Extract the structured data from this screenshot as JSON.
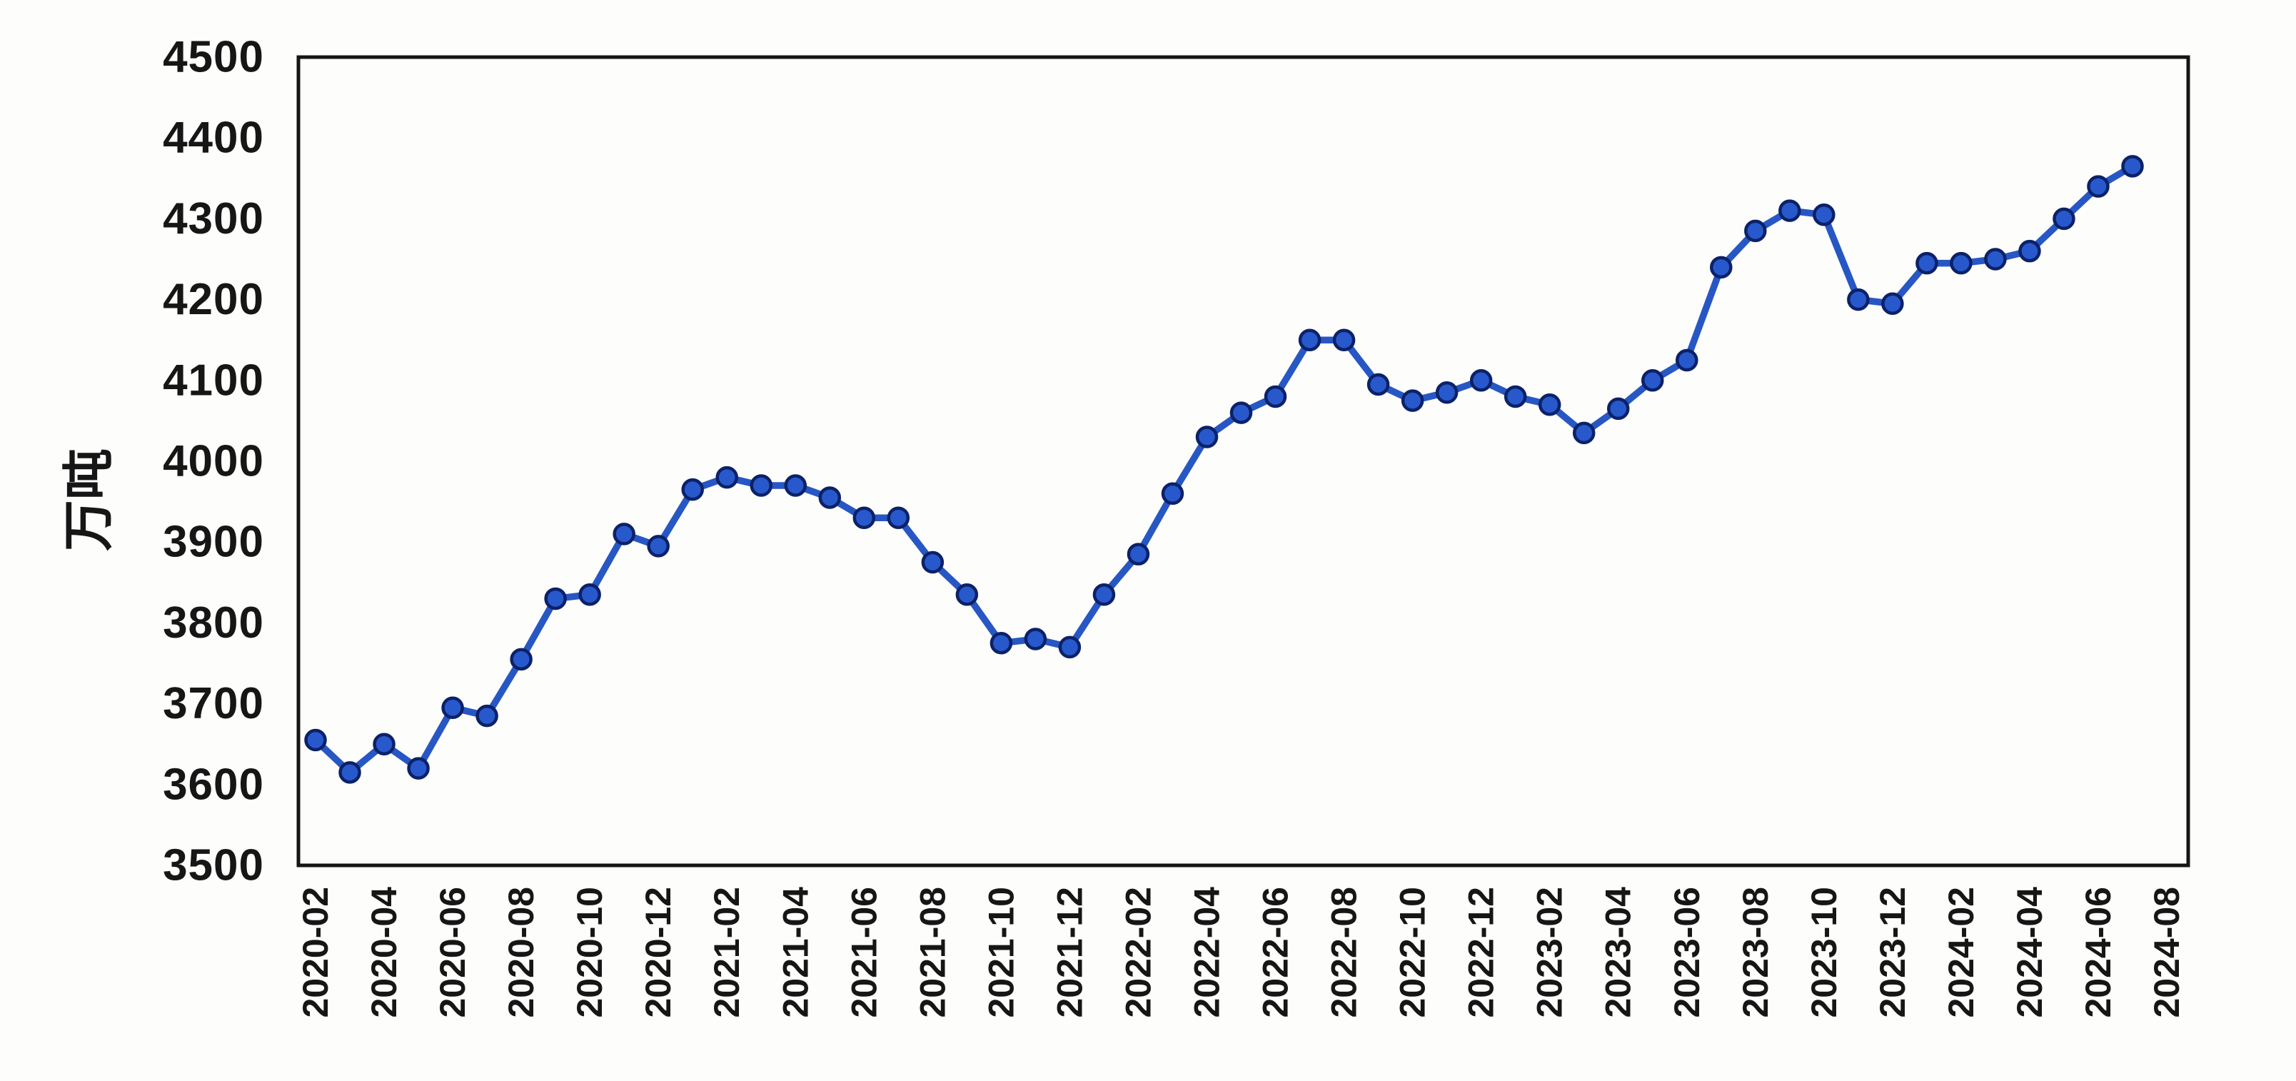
{
  "page": {
    "background": "#fdfdfb"
  },
  "chart_data": {
    "type": "line",
    "title": "",
    "ylabel": "万吨",
    "xlabel": "",
    "grid": false,
    "legend": "none",
    "ylim": [
      3500,
      4500
    ],
    "yticks": [
      3500,
      3600,
      3700,
      3800,
      3900,
      4000,
      4100,
      4200,
      4300,
      4400,
      4500
    ],
    "xtick_labels": [
      "2020-02",
      "2020-04",
      "2020-06",
      "2020-08",
      "2020-10",
      "2020-12",
      "2021-02",
      "2021-04",
      "2021-06",
      "2021-08",
      "2021-10",
      "2021-12",
      "2022-02",
      "2022-04",
      "2022-06",
      "2022-08",
      "2022-10",
      "2022-12",
      "2023-02",
      "2023-04",
      "2023-06",
      "2023-08",
      "2023-10",
      "2023-12",
      "2024-02",
      "2024-04",
      "2024-06",
      "2024-08"
    ],
    "x": [
      "2020-02",
      "2020-03",
      "2020-04",
      "2020-05",
      "2020-06",
      "2020-07",
      "2020-08",
      "2020-09",
      "2020-10",
      "2020-11",
      "2020-12",
      "2021-01",
      "2021-02",
      "2021-03",
      "2021-04",
      "2021-05",
      "2021-06",
      "2021-07",
      "2021-08",
      "2021-09",
      "2021-10",
      "2021-11",
      "2021-12",
      "2022-01",
      "2022-02",
      "2022-03",
      "2022-04",
      "2022-05",
      "2022-06",
      "2022-07",
      "2022-08",
      "2022-09",
      "2022-10",
      "2022-11",
      "2022-12",
      "2023-01",
      "2023-02",
      "2023-03",
      "2023-04",
      "2023-05",
      "2023-06",
      "2023-07",
      "2023-08",
      "2023-09",
      "2023-10",
      "2023-11",
      "2023-12",
      "2024-01",
      "2024-02",
      "2024-03",
      "2024-04",
      "2024-05",
      "2024-06",
      "2024-07"
    ],
    "series": [
      {
        "values": [
          3655,
          3615,
          3650,
          3620,
          3695,
          3685,
          3755,
          3830,
          3835,
          3910,
          3895,
          3965,
          3980,
          3970,
          3970,
          3955,
          3930,
          3930,
          3875,
          3835,
          3775,
          3780,
          3770,
          3835,
          3885,
          3960,
          4030,
          4060,
          4080,
          4150,
          4150,
          4095,
          4075,
          4085,
          4100,
          4080,
          4070,
          4035,
          4065,
          4100,
          4125,
          4240,
          4285,
          4310,
          4305,
          4200,
          4195,
          4245,
          4245,
          4250,
          4260,
          4300,
          4340,
          4365
        ]
      }
    ],
    "colors": {
      "line": "#2757c4",
      "marker_fill": "#2859cc",
      "marker_edge": "#0c2168",
      "axis_frame": "#151515",
      "text": "#161616"
    }
  }
}
